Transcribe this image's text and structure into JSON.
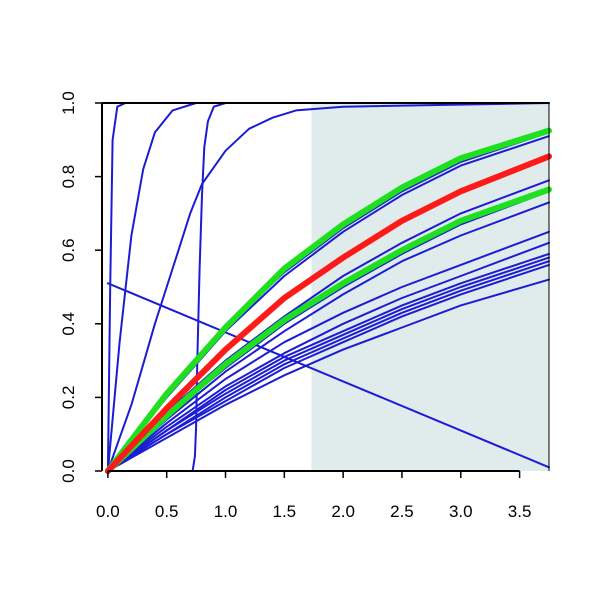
{
  "chart_data": {
    "type": "line",
    "title": "",
    "xlabel": "",
    "ylabel": "",
    "xlim": [
      -0.05,
      3.75
    ],
    "ylim": [
      0,
      1
    ],
    "x_ticks": [
      "0.0",
      "0.5",
      "1.0",
      "1.5",
      "2.0",
      "2.5",
      "3.0",
      "3.5"
    ],
    "y_ticks": [
      "0.0",
      "0.2",
      "0.4",
      "0.6",
      "0.8",
      "1.0"
    ],
    "grid": false,
    "shaded_region": {
      "x_from": 1.73,
      "x_to": 3.75,
      "color": "#e0ecec"
    },
    "colors": {
      "blue": "#1c1cd4",
      "red": "#ff1a1a",
      "green": "#1ee01e",
      "axis": "#000000"
    },
    "series": [
      {
        "color": "blue",
        "width": 2,
        "points": [
          [
            0,
            0
          ],
          [
            0.02,
            0.5
          ],
          [
            0.04,
            0.9
          ],
          [
            0.08,
            0.99
          ],
          [
            0.15,
            1
          ],
          [
            3.75,
            1
          ]
        ]
      },
      {
        "color": "blue",
        "width": 2,
        "points": [
          [
            0,
            0
          ],
          [
            0.1,
            0.35
          ],
          [
            0.2,
            0.64
          ],
          [
            0.3,
            0.82
          ],
          [
            0.4,
            0.92
          ],
          [
            0.55,
            0.98
          ],
          [
            0.75,
            1
          ],
          [
            3.75,
            1
          ]
        ]
      },
      {
        "color": "blue",
        "width": 2,
        "points": [
          [
            0,
            0
          ],
          [
            0.1,
            0.09
          ],
          [
            0.2,
            0.18
          ],
          [
            0.3,
            0.29
          ],
          [
            0.4,
            0.4
          ],
          [
            0.5,
            0.5
          ],
          [
            0.6,
            0.6
          ],
          [
            0.7,
            0.7
          ],
          [
            0.8,
            0.78
          ],
          [
            1.0,
            0.87
          ],
          [
            1.2,
            0.93
          ],
          [
            1.4,
            0.96
          ],
          [
            1.6,
            0.98
          ],
          [
            2.0,
            0.99
          ],
          [
            3.75,
            1
          ]
        ]
      },
      {
        "color": "blue",
        "width": 2,
        "points": [
          [
            0,
            0
          ],
          [
            0.72,
            0
          ],
          [
            0.74,
            0.04
          ],
          [
            0.75,
            0.12
          ],
          [
            0.76,
            0.3
          ],
          [
            0.78,
            0.55
          ],
          [
            0.8,
            0.75
          ],
          [
            0.82,
            0.88
          ],
          [
            0.85,
            0.95
          ],
          [
            0.9,
            0.99
          ],
          [
            1.0,
            1
          ],
          [
            3.75,
            1
          ]
        ]
      },
      {
        "color": "blue",
        "width": 2,
        "points": [
          [
            0,
            0.51
          ],
          [
            3.75,
            0.01
          ]
        ]
      },
      {
        "color": "blue",
        "width": 2,
        "points": [
          [
            0,
            0
          ],
          [
            0.5,
            0.13
          ],
          [
            1.0,
            0.25
          ],
          [
            1.5,
            0.35
          ],
          [
            2.0,
            0.43
          ],
          [
            2.5,
            0.5
          ],
          [
            3.0,
            0.56
          ],
          [
            3.75,
            0.65
          ]
        ]
      },
      {
        "color": "blue",
        "width": 2,
        "points": [
          [
            0,
            0
          ],
          [
            0.5,
            0.12
          ],
          [
            1.0,
            0.23
          ],
          [
            1.5,
            0.32
          ],
          [
            2.0,
            0.4
          ],
          [
            2.5,
            0.47
          ],
          [
            3.0,
            0.53
          ],
          [
            3.75,
            0.62
          ]
        ]
      },
      {
        "color": "blue",
        "width": 2,
        "points": [
          [
            0,
            0
          ],
          [
            0.5,
            0.11
          ],
          [
            1.0,
            0.22
          ],
          [
            1.5,
            0.31
          ],
          [
            2.0,
            0.38
          ],
          [
            2.5,
            0.45
          ],
          [
            3.0,
            0.51
          ],
          [
            3.75,
            0.59
          ]
        ]
      },
      {
        "color": "blue",
        "width": 2,
        "points": [
          [
            0,
            0
          ],
          [
            0.5,
            0.11
          ],
          [
            1.0,
            0.21
          ],
          [
            1.5,
            0.3
          ],
          [
            2.0,
            0.37
          ],
          [
            2.5,
            0.44
          ],
          [
            3.0,
            0.5
          ],
          [
            3.75,
            0.58
          ]
        ]
      },
      {
        "color": "blue",
        "width": 2,
        "points": [
          [
            0,
            0
          ],
          [
            0.5,
            0.1
          ],
          [
            1.0,
            0.2
          ],
          [
            1.5,
            0.29
          ],
          [
            2.0,
            0.36
          ],
          [
            2.5,
            0.43
          ],
          [
            3.0,
            0.49
          ],
          [
            3.75,
            0.57
          ]
        ]
      },
      {
        "color": "blue",
        "width": 2,
        "points": [
          [
            0,
            0
          ],
          [
            0.5,
            0.1
          ],
          [
            1.0,
            0.19
          ],
          [
            1.5,
            0.28
          ],
          [
            2.0,
            0.35
          ],
          [
            2.5,
            0.42
          ],
          [
            3.0,
            0.48
          ],
          [
            3.75,
            0.56
          ]
        ]
      },
      {
        "color": "blue",
        "width": 2,
        "points": [
          [
            0,
            0
          ],
          [
            0.5,
            0.09
          ],
          [
            1.0,
            0.18
          ],
          [
            1.5,
            0.26
          ],
          [
            2.0,
            0.33
          ],
          [
            2.5,
            0.39
          ],
          [
            3.0,
            0.45
          ],
          [
            3.75,
            0.52
          ]
        ]
      },
      {
        "color": "blue",
        "width": 2,
        "points": [
          [
            0,
            0
          ],
          [
            0.5,
            0.14
          ],
          [
            1.0,
            0.27
          ],
          [
            1.5,
            0.38
          ],
          [
            2.0,
            0.48
          ],
          [
            2.5,
            0.57
          ],
          [
            3.0,
            0.64
          ],
          [
            3.75,
            0.73
          ]
        ]
      },
      {
        "color": "blue",
        "width": 2,
        "points": [
          [
            0,
            0
          ],
          [
            0.5,
            0.15
          ],
          [
            1.0,
            0.28
          ],
          [
            1.5,
            0.4
          ],
          [
            2.0,
            0.5
          ],
          [
            2.5,
            0.59
          ],
          [
            3.0,
            0.67
          ],
          [
            3.75,
            0.76
          ]
        ]
      },
      {
        "color": "blue",
        "width": 2,
        "points": [
          [
            0,
            0
          ],
          [
            0.5,
            0.16
          ],
          [
            1.0,
            0.3
          ],
          [
            1.5,
            0.42
          ],
          [
            2.0,
            0.53
          ],
          [
            2.5,
            0.62
          ],
          [
            3.0,
            0.7
          ],
          [
            3.75,
            0.79
          ]
        ]
      },
      {
        "color": "blue",
        "width": 2,
        "points": [
          [
            0,
            0
          ],
          [
            0.5,
            0.2
          ],
          [
            1.0,
            0.38
          ],
          [
            1.5,
            0.53
          ],
          [
            2.0,
            0.65
          ],
          [
            2.5,
            0.75
          ],
          [
            3.0,
            0.83
          ],
          [
            3.75,
            0.91
          ]
        ]
      },
      {
        "color": "blue",
        "width": 2,
        "points": [
          [
            0,
            0
          ],
          [
            0.5,
            0.21
          ],
          [
            1.0,
            0.39
          ],
          [
            1.5,
            0.54
          ],
          [
            2.0,
            0.66
          ],
          [
            2.5,
            0.76
          ],
          [
            3.0,
            0.84
          ],
          [
            3.75,
            0.92
          ]
        ]
      },
      {
        "color": "green",
        "width": 6,
        "points": [
          [
            0,
            0
          ],
          [
            0.5,
            0.21
          ],
          [
            1.0,
            0.39
          ],
          [
            1.5,
            0.55
          ],
          [
            2.0,
            0.67
          ],
          [
            2.5,
            0.77
          ],
          [
            3.0,
            0.85
          ],
          [
            3.75,
            0.925
          ]
        ]
      },
      {
        "color": "green",
        "width": 6,
        "points": [
          [
            0,
            0
          ],
          [
            0.5,
            0.15
          ],
          [
            1.0,
            0.29
          ],
          [
            1.5,
            0.41
          ],
          [
            2.0,
            0.51
          ],
          [
            2.5,
            0.6
          ],
          [
            3.0,
            0.68
          ],
          [
            3.75,
            0.765
          ]
        ]
      },
      {
        "color": "red",
        "width": 6,
        "points": [
          [
            0,
            0
          ],
          [
            0.5,
            0.17
          ],
          [
            1.0,
            0.33
          ],
          [
            1.5,
            0.47
          ],
          [
            2.0,
            0.58
          ],
          [
            2.5,
            0.68
          ],
          [
            3.0,
            0.76
          ],
          [
            3.75,
            0.855
          ]
        ]
      }
    ]
  }
}
